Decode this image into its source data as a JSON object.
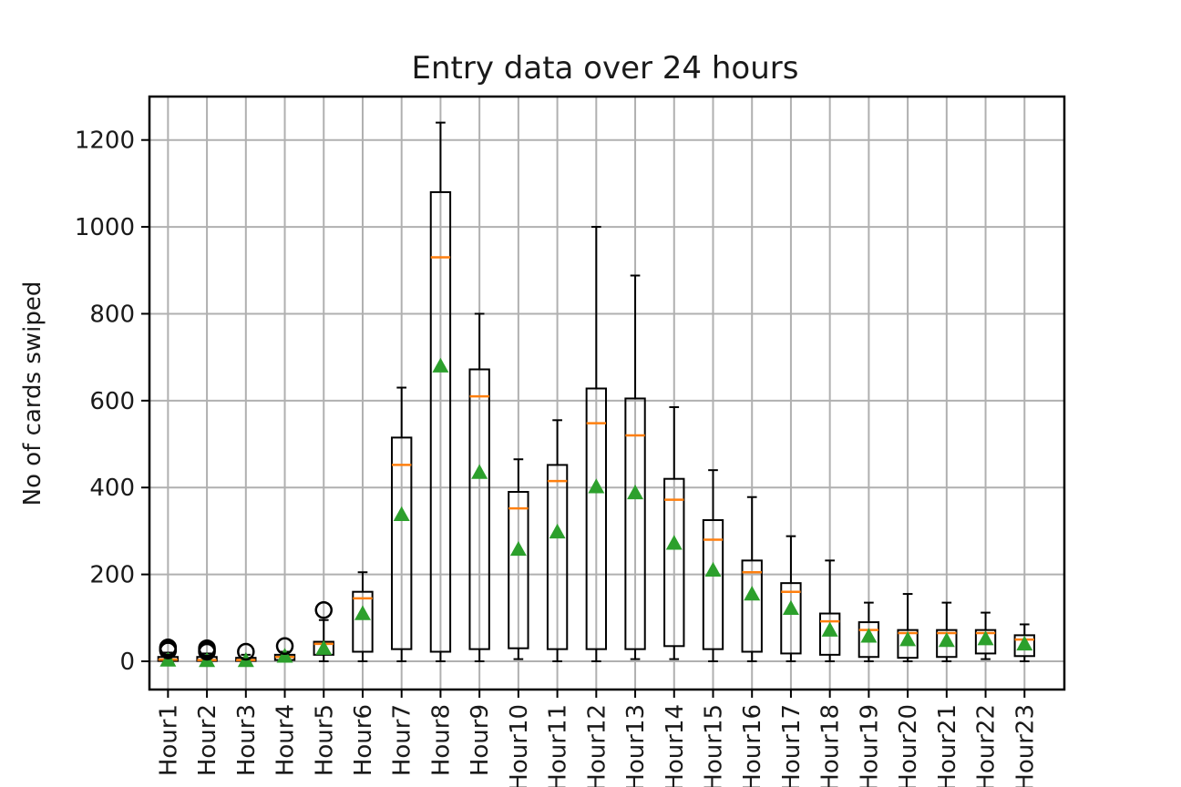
{
  "chart_data": {
    "type": "boxplot",
    "title": "Entry data over 24 hours",
    "xlabel": "",
    "ylabel": "No of cards swiped",
    "ylim": [
      -65,
      1300
    ],
    "yticks": [
      0,
      200,
      400,
      600,
      800,
      1000,
      1200
    ],
    "ytick_labels": [
      "0",
      "200",
      "400",
      "600",
      "800",
      "1000",
      "1200"
    ],
    "grid": true,
    "categories": [
      "Hour1",
      "Hour2",
      "Hour3",
      "Hour4",
      "Hour5",
      "Hour6",
      "Hour7",
      "Hour8",
      "Hour9",
      "Hour10",
      "Hour11",
      "Hour12",
      "Hour13",
      "Hour14",
      "Hour15",
      "Hour16",
      "Hour17",
      "Hour18",
      "Hour19",
      "Hour20",
      "Hour21",
      "Hour22",
      "Hour23"
    ],
    "colors": {
      "median": "#ff7f0e",
      "mean": "#2ca02c",
      "box": "#000000",
      "grid": "#b0b0b0"
    },
    "boxes": [
      {
        "whislo": 0,
        "q1": 1,
        "med": 4,
        "q3": 10,
        "whishi": 20,
        "mean": 3,
        "fliers": [
          25,
          28,
          32
        ]
      },
      {
        "whislo": 0,
        "q1": 1,
        "med": 3,
        "q3": 10,
        "whishi": 18,
        "mean": 2,
        "fliers": [
          22,
          26,
          30
        ]
      },
      {
        "whislo": 0,
        "q1": 1,
        "med": 3,
        "q3": 8,
        "whishi": 15,
        "mean": 2,
        "fliers": [
          22
        ]
      },
      {
        "whislo": 0,
        "q1": 3,
        "med": 10,
        "q3": 15,
        "whishi": 22,
        "mean": 12,
        "fliers": [
          35
        ]
      },
      {
        "whislo": 0,
        "q1": 15,
        "med": 40,
        "q3": 45,
        "whishi": 95,
        "mean": 30,
        "fliers": [
          118
        ]
      },
      {
        "whislo": 0,
        "q1": 22,
        "med": 145,
        "q3": 160,
        "whishi": 205,
        "mean": 110,
        "fliers": []
      },
      {
        "whislo": 0,
        "q1": 28,
        "med": 452,
        "q3": 515,
        "whishi": 630,
        "mean": 338,
        "fliers": []
      },
      {
        "whislo": 0,
        "q1": 22,
        "med": 930,
        "q3": 1080,
        "whishi": 1240,
        "mean": 680,
        "fliers": []
      },
      {
        "whislo": 0,
        "q1": 28,
        "med": 610,
        "q3": 672,
        "whishi": 800,
        "mean": 435,
        "fliers": []
      },
      {
        "whislo": 5,
        "q1": 30,
        "med": 352,
        "q3": 390,
        "whishi": 465,
        "mean": 258,
        "fliers": []
      },
      {
        "whislo": 0,
        "q1": 28,
        "med": 415,
        "q3": 452,
        "whishi": 555,
        "mean": 298,
        "fliers": []
      },
      {
        "whislo": 0,
        "q1": 28,
        "med": 548,
        "q3": 628,
        "whishi": 1000,
        "mean": 402,
        "fliers": []
      },
      {
        "whislo": 5,
        "q1": 28,
        "med": 520,
        "q3": 605,
        "whishi": 888,
        "mean": 388,
        "fliers": []
      },
      {
        "whislo": 5,
        "q1": 35,
        "med": 372,
        "q3": 420,
        "whishi": 585,
        "mean": 272,
        "fliers": []
      },
      {
        "whislo": 0,
        "q1": 28,
        "med": 280,
        "q3": 325,
        "whishi": 440,
        "mean": 210,
        "fliers": []
      },
      {
        "whislo": 0,
        "q1": 22,
        "med": 205,
        "q3": 232,
        "whishi": 378,
        "mean": 155,
        "fliers": []
      },
      {
        "whislo": 0,
        "q1": 18,
        "med": 160,
        "q3": 180,
        "whishi": 288,
        "mean": 122,
        "fliers": []
      },
      {
        "whislo": 0,
        "q1": 15,
        "med": 92,
        "q3": 110,
        "whishi": 232,
        "mean": 72,
        "fliers": []
      },
      {
        "whislo": 0,
        "q1": 10,
        "med": 72,
        "q3": 90,
        "whishi": 135,
        "mean": 58,
        "fliers": []
      },
      {
        "whislo": 0,
        "q1": 8,
        "med": 65,
        "q3": 72,
        "whishi": 155,
        "mean": 50,
        "fliers": []
      },
      {
        "whislo": 0,
        "q1": 10,
        "med": 65,
        "q3": 72,
        "whishi": 135,
        "mean": 48,
        "fliers": []
      },
      {
        "whislo": 5,
        "q1": 18,
        "med": 65,
        "q3": 72,
        "whishi": 112,
        "mean": 52,
        "fliers": []
      },
      {
        "whislo": 0,
        "q1": 12,
        "med": 50,
        "q3": 60,
        "whishi": 85,
        "mean": 40,
        "fliers": []
      }
    ]
  }
}
